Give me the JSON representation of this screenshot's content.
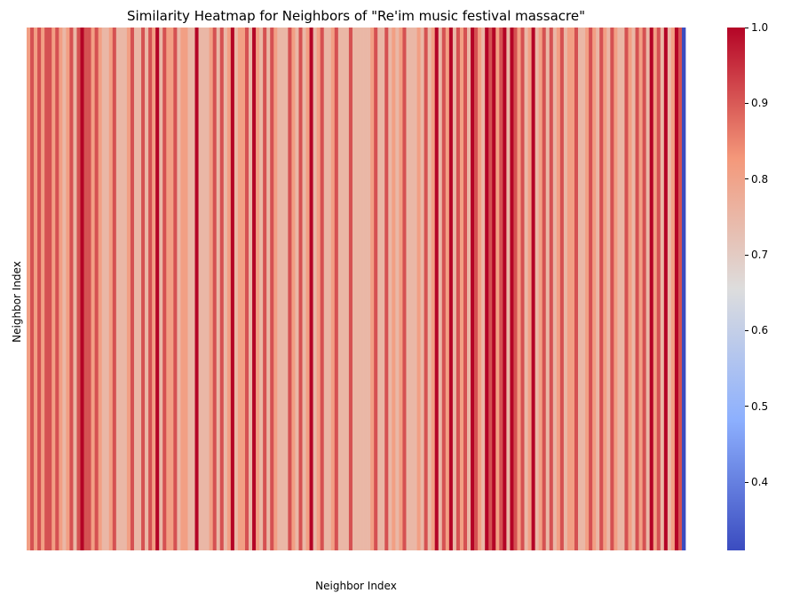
{
  "chart_data": {
    "type": "heatmap",
    "title": "Similarity Heatmap for Neighbors of \"Re'im music festival massacre\"",
    "xlabel": "Neighbor Index",
    "ylabel": "Neighbor Index",
    "colormap": "coolwarm",
    "colorbar": {
      "range": [
        0.31,
        1.0
      ],
      "ticks": [
        "0.4",
        "0.5",
        "0.6",
        "0.7",
        "0.8",
        "0.9",
        "1.0"
      ],
      "tick_values": [
        0.4,
        0.5,
        0.6,
        0.7,
        0.8,
        0.9,
        1.0
      ]
    },
    "row_values_note": "all rows identical",
    "column_values": [
      0.81,
      0.91,
      0.81,
      0.91,
      0.81,
      0.91,
      0.91,
      0.81,
      0.91,
      0.81,
      0.75,
      0.81,
      0.91,
      0.75,
      0.91,
      1.0,
      0.91,
      0.91,
      0.81,
      0.91,
      0.81,
      0.75,
      0.75,
      0.81,
      0.91,
      0.75,
      0.75,
      0.75,
      0.81,
      0.91,
      0.75,
      0.75,
      0.91,
      0.75,
      0.91,
      0.81,
      1.0,
      0.75,
      0.91,
      0.81,
      0.81,
      0.91,
      0.75,
      0.81,
      0.81,
      0.75,
      0.75,
      1.0,
      0.75,
      0.75,
      0.75,
      0.81,
      0.91,
      0.75,
      0.91,
      0.75,
      0.81,
      1.0,
      0.75,
      0.81,
      0.81,
      0.91,
      0.75,
      1.0,
      0.81,
      0.75,
      0.91,
      0.75,
      0.91,
      0.81,
      0.75,
      0.75,
      0.75,
      0.91,
      0.81,
      0.75,
      0.91,
      0.75,
      0.81,
      1.0,
      0.75,
      0.81,
      0.91,
      0.75,
      0.75,
      0.81,
      0.91,
      0.75,
      0.75,
      0.75,
      0.91,
      0.75,
      0.75,
      0.75,
      0.75,
      0.75,
      0.81,
      0.91,
      0.75,
      0.75,
      0.91,
      0.75,
      0.81,
      0.75,
      0.81,
      0.91,
      0.75,
      0.75,
      0.75,
      0.81,
      0.75,
      0.91,
      0.75,
      0.81,
      1.0,
      0.75,
      0.91,
      0.81,
      1.0,
      0.75,
      0.91,
      0.81,
      0.91,
      0.75,
      1.0,
      0.91,
      0.81,
      0.75,
      1.0,
      0.91,
      1.0,
      0.81,
      0.91,
      1.0,
      0.75,
      1.0,
      0.91,
      0.81,
      0.91,
      0.75,
      0.81,
      1.0,
      0.75,
      0.81,
      0.91,
      0.75,
      0.91,
      0.75,
      0.81,
      0.91,
      0.75,
      0.81,
      0.81,
      0.91,
      0.75,
      0.75,
      0.81,
      0.91,
      0.81,
      0.75,
      0.91,
      0.81,
      0.75,
      0.91,
      0.81,
      0.75,
      0.75,
      0.91,
      0.81,
      0.75,
      0.91,
      0.81,
      0.91,
      0.75,
      1.0,
      0.81,
      0.91,
      0.75,
      1.0,
      0.75,
      0.81,
      1.0,
      0.91,
      0.31
    ]
  }
}
